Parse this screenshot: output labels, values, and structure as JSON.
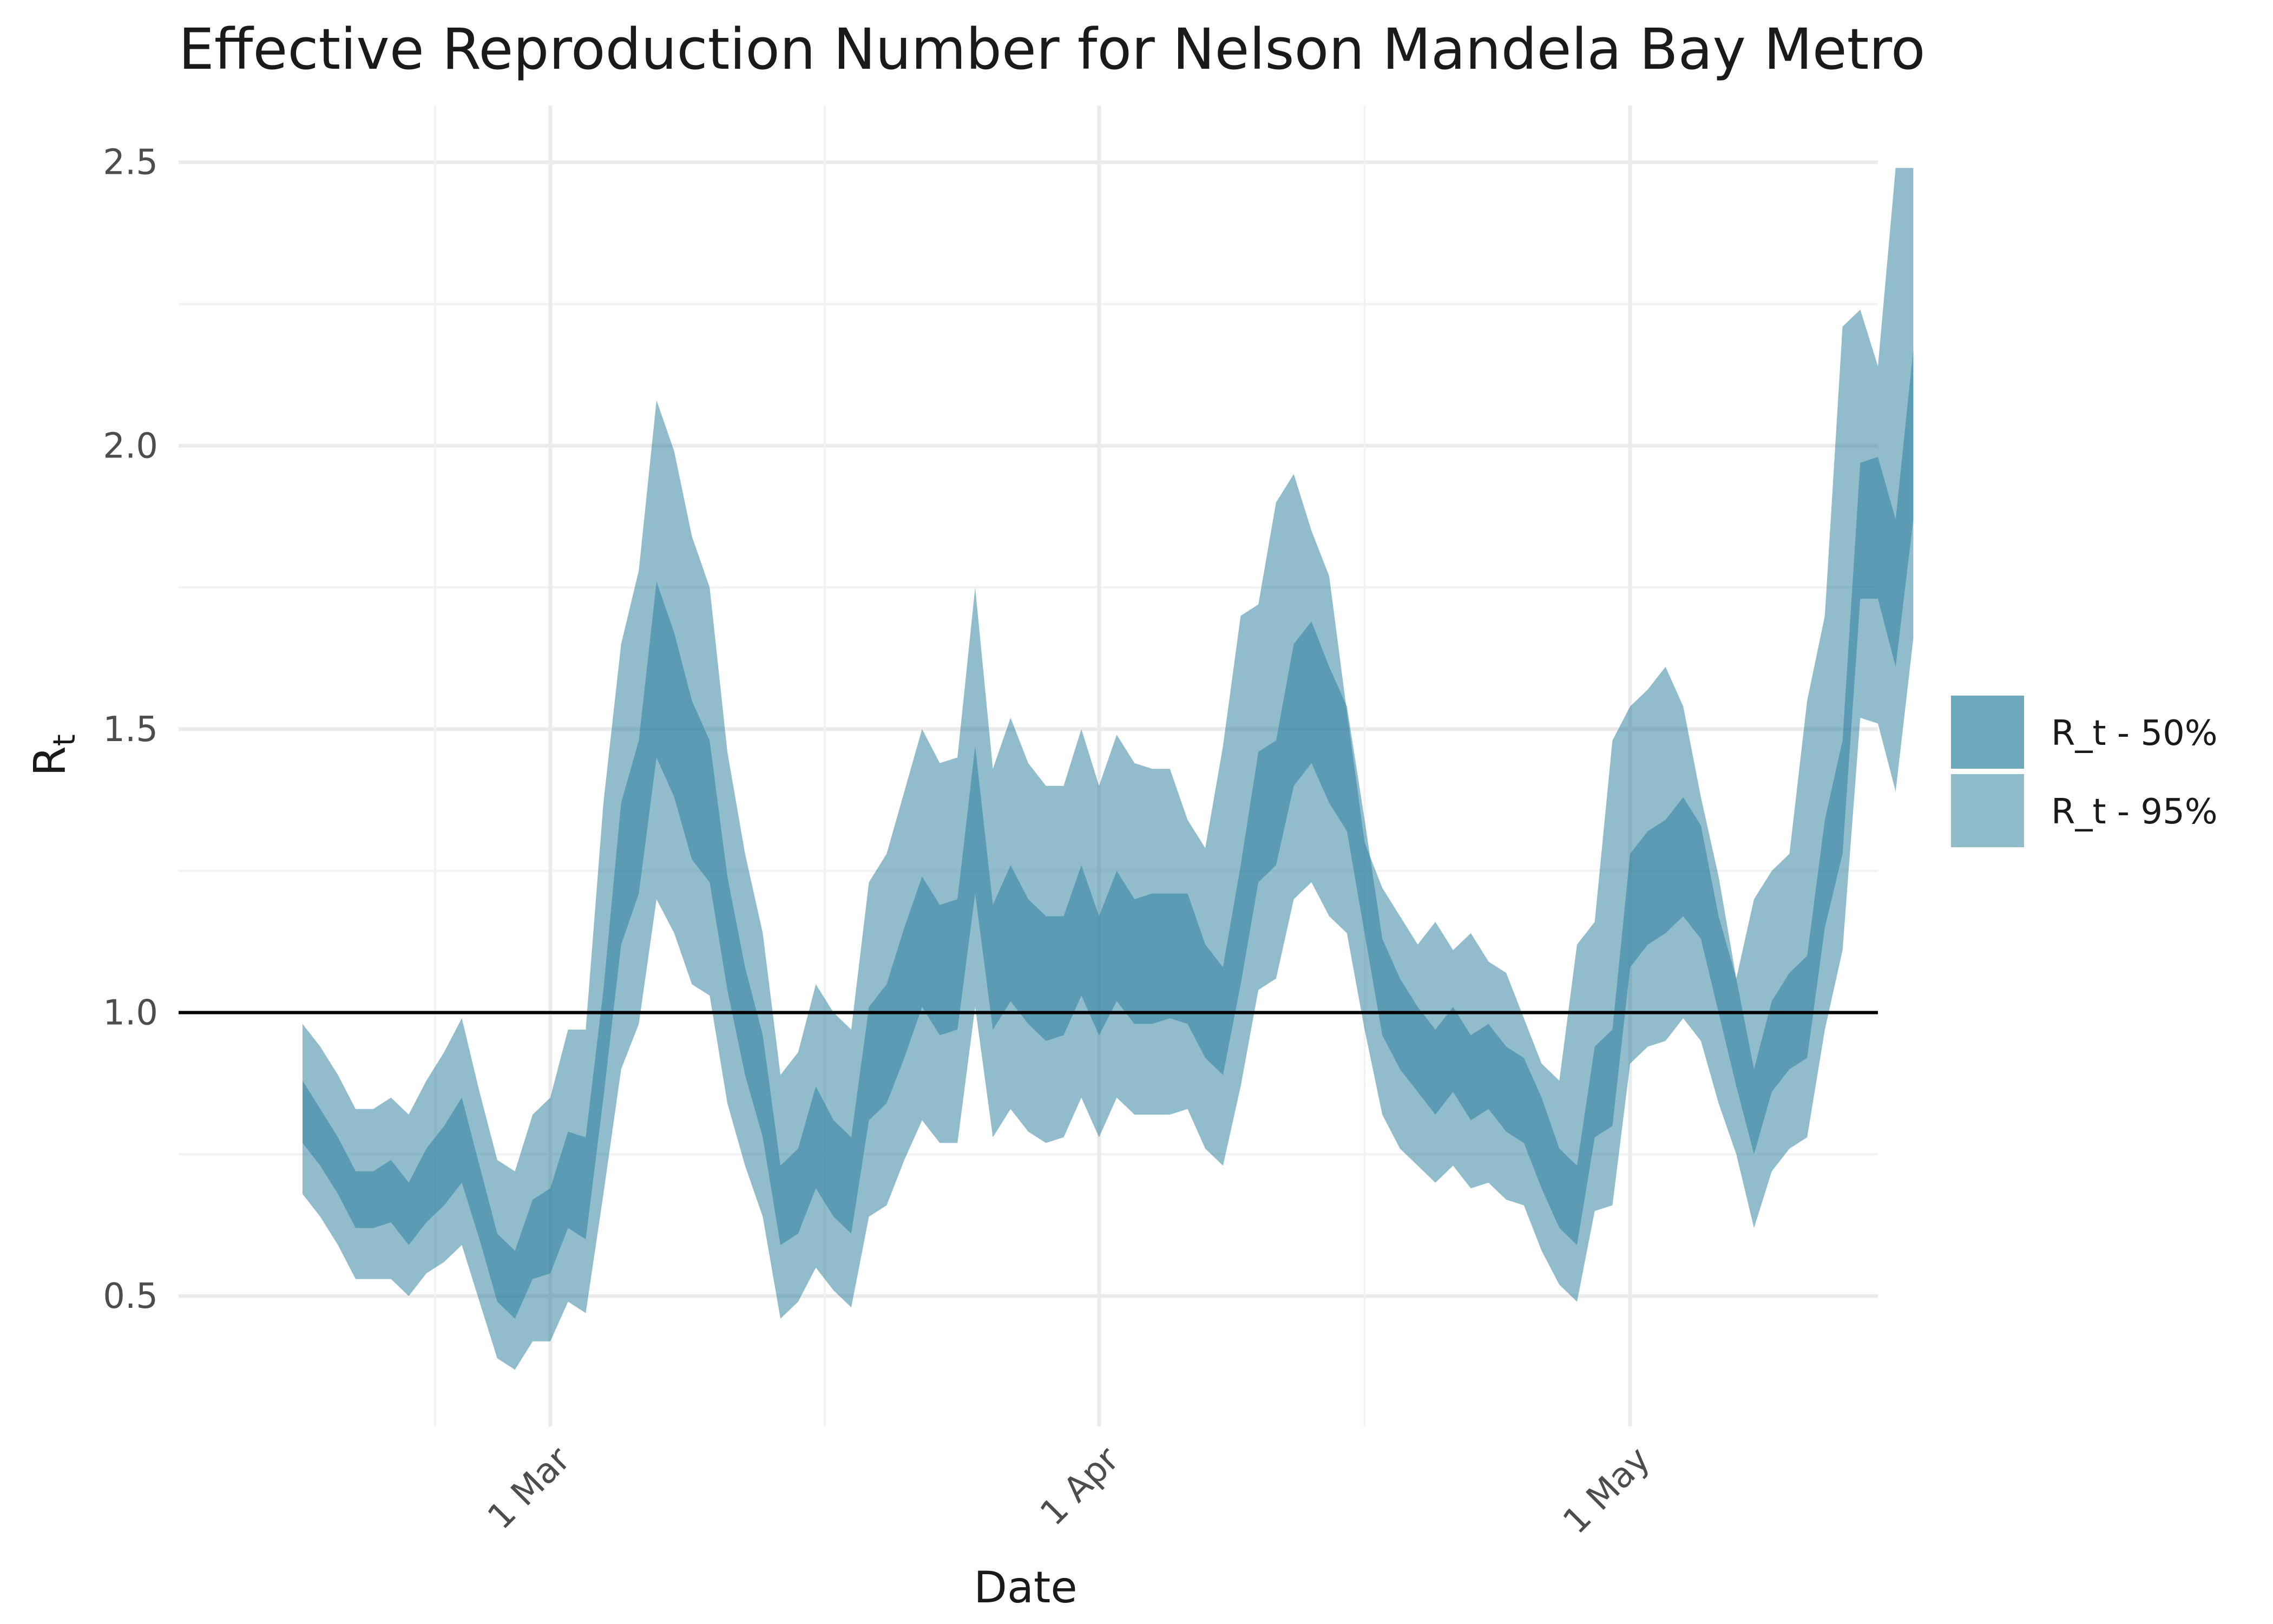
{
  "chart_data": {
    "type": "area",
    "title": "Effective Reproduction Number for Nelson Mandela Bay Metro",
    "xlabel": "Date",
    "ylabel": "R",
    "ylabel_subscript": "t",
    "x_start": "2021-02-15",
    "x_step_days": 1,
    "xlim": [
      "2021-02-08",
      "2021-05-15"
    ],
    "ylim": [
      0.27,
      2.6
    ],
    "x_ticks": [
      {
        "date": "2021-03-01",
        "label": "1 Mar"
      },
      {
        "date": "2021-04-01",
        "label": "1 Apr"
      },
      {
        "date": "2021-05-01",
        "label": "1 May"
      }
    ],
    "y_ticks": [
      0.5,
      1.0,
      1.5,
      2.0,
      2.5
    ],
    "y_tick_labels": [
      "0.5",
      "1.0",
      "1.5",
      "2.0",
      "2.5"
    ],
    "grid": true,
    "reference_line": 1.0,
    "legend_position": "right",
    "series": [
      {
        "name": "R_t - 50%",
        "color": "#2a7f9e",
        "lower": [
          0.77,
          0.73,
          0.68,
          0.62,
          0.62,
          0.63,
          0.59,
          0.63,
          0.66,
          0.7,
          0.6,
          0.49,
          0.46,
          0.53,
          0.54,
          0.62,
          0.6,
          0.85,
          1.12,
          1.21,
          1.45,
          1.38,
          1.27,
          1.23,
          1.04,
          0.89,
          0.78,
          0.59,
          0.61,
          0.69,
          0.64,
          0.61,
          0.81,
          0.84,
          0.92,
          1.01,
          0.96,
          0.97,
          1.21,
          0.97,
          1.02,
          0.98,
          0.95,
          0.96,
          1.03,
          0.96,
          1.02,
          0.98,
          0.98,
          0.99,
          0.98,
          0.92,
          0.89,
          1.05,
          1.23,
          1.26,
          1.4,
          1.44,
          1.37,
          1.32,
          1.14,
          0.96,
          0.9,
          0.86,
          0.82,
          0.86,
          0.81,
          0.83,
          0.79,
          0.77,
          0.69,
          0.62,
          0.59,
          0.78,
          0.8,
          1.08,
          1.12,
          1.14,
          1.17,
          1.13,
          1.0,
          0.87,
          0.75,
          0.86,
          0.9,
          0.92,
          1.15,
          1.28,
          1.73,
          1.73,
          1.61,
          1.87
        ],
        "upper": [
          0.88,
          0.83,
          0.78,
          0.72,
          0.72,
          0.74,
          0.7,
          0.76,
          0.8,
          0.85,
          0.73,
          0.61,
          0.58,
          0.67,
          0.69,
          0.79,
          0.78,
          1.04,
          1.37,
          1.48,
          1.76,
          1.67,
          1.55,
          1.48,
          1.24,
          1.08,
          0.96,
          0.73,
          0.76,
          0.87,
          0.81,
          0.78,
          1.01,
          1.05,
          1.15,
          1.24,
          1.19,
          1.2,
          1.47,
          1.19,
          1.26,
          1.2,
          1.17,
          1.17,
          1.26,
          1.17,
          1.25,
          1.2,
          1.21,
          1.21,
          1.21,
          1.12,
          1.08,
          1.26,
          1.46,
          1.48,
          1.65,
          1.69,
          1.61,
          1.54,
          1.34,
          1.13,
          1.06,
          1.01,
          0.97,
          1.01,
          0.96,
          0.98,
          0.94,
          0.92,
          0.85,
          0.76,
          0.73,
          0.94,
          0.97,
          1.28,
          1.32,
          1.34,
          1.38,
          1.33,
          1.17,
          1.06,
          0.9,
          1.02,
          1.07,
          1.1,
          1.34,
          1.48,
          1.97,
          1.98,
          1.87,
          2.17
        ]
      },
      {
        "name": "R_t - 95%",
        "color": "#2a7f9e",
        "lower": [
          0.68,
          0.64,
          0.59,
          0.53,
          0.53,
          0.53,
          0.5,
          0.54,
          0.56,
          0.59,
          0.49,
          0.39,
          0.37,
          0.42,
          0.42,
          0.49,
          0.47,
          0.68,
          0.9,
          0.98,
          1.2,
          1.14,
          1.05,
          1.03,
          0.84,
          0.73,
          0.64,
          0.46,
          0.49,
          0.55,
          0.51,
          0.48,
          0.64,
          0.66,
          0.74,
          0.81,
          0.77,
          0.77,
          1.01,
          0.78,
          0.83,
          0.79,
          0.77,
          0.78,
          0.85,
          0.78,
          0.85,
          0.82,
          0.82,
          0.82,
          0.83,
          0.76,
          0.73,
          0.87,
          1.04,
          1.06,
          1.2,
          1.23,
          1.17,
          1.14,
          0.97,
          0.82,
          0.76,
          0.73,
          0.7,
          0.73,
          0.69,
          0.7,
          0.67,
          0.66,
          0.58,
          0.52,
          0.49,
          0.65,
          0.66,
          0.91,
          0.94,
          0.95,
          0.99,
          0.95,
          0.84,
          0.75,
          0.62,
          0.72,
          0.76,
          0.78,
          0.97,
          1.11,
          1.52,
          1.51,
          1.39,
          1.66
        ],
        "upper": [
          0.98,
          0.94,
          0.89,
          0.83,
          0.83,
          0.85,
          0.82,
          0.88,
          0.93,
          0.99,
          0.86,
          0.74,
          0.72,
          0.82,
          0.85,
          0.97,
          0.97,
          1.37,
          1.65,
          1.78,
          2.08,
          1.99,
          1.84,
          1.75,
          1.46,
          1.28,
          1.14,
          0.89,
          0.93,
          1.05,
          1.0,
          0.97,
          1.23,
          1.28,
          1.39,
          1.5,
          1.44,
          1.45,
          1.75,
          1.43,
          1.52,
          1.44,
          1.4,
          1.4,
          1.5,
          1.4,
          1.49,
          1.44,
          1.43,
          1.43,
          1.34,
          1.29,
          1.47,
          1.7,
          1.72,
          1.9,
          1.95,
          1.85,
          1.77,
          1.53,
          1.3,
          1.22,
          1.17,
          1.12,
          1.16,
          1.11,
          1.14,
          1.09,
          1.07,
          0.99,
          0.91,
          0.88,
          1.12,
          1.16,
          1.48,
          1.54,
          1.57,
          1.61,
          1.54,
          1.38,
          1.24,
          1.06,
          1.2,
          1.25,
          1.28,
          1.55,
          1.7,
          2.21,
          2.24,
          2.14,
          2.49,
          2.49
        ]
      }
    ]
  }
}
